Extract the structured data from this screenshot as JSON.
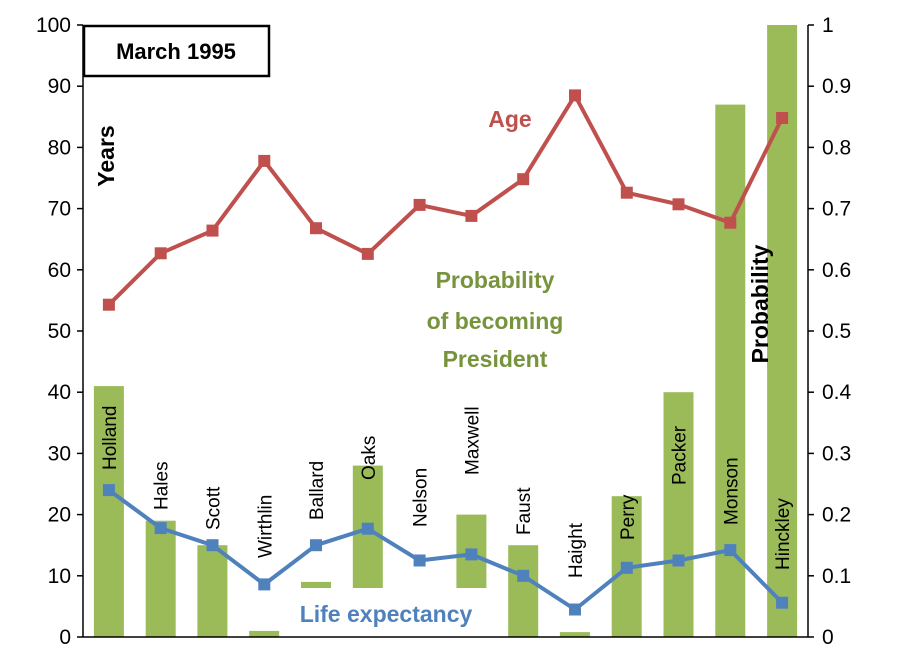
{
  "chart_data": {
    "type": "bar",
    "date_box": "March 1995",
    "categories": [
      "Holland",
      "Hales",
      "Scott",
      "Wirthlin",
      "Ballard",
      "Oaks",
      "Nelson",
      "Maxwell",
      "Faust",
      "Haight",
      "Perry",
      "Packer",
      "Monson",
      "Hinckley"
    ],
    "series": [
      {
        "name": "Probability of becoming President",
        "type": "bar",
        "axis": "right",
        "color": "#9bbb59",
        "values": [
          0.41,
          0.19,
          0.15,
          0.01,
          0.09,
          0.28,
          0.075,
          0.2,
          0.15,
          0.008,
          0.23,
          0.4,
          0.87,
          1.0
        ],
        "base": [
          0,
          0,
          0,
          0,
          0.08,
          0.08,
          0.08,
          0.08,
          0,
          0,
          0,
          0,
          0,
          0
        ]
      },
      {
        "name": "Age",
        "type": "line",
        "axis": "left",
        "color": "#c0504d",
        "values": [
          54.3,
          62.7,
          66.4,
          77.8,
          66.8,
          62.6,
          70.6,
          68.8,
          74.8,
          88.5,
          72.6,
          70.7,
          67.7,
          84.8
        ]
      },
      {
        "name": "Life expectancy",
        "type": "line",
        "axis": "left",
        "color": "#4f81bd",
        "values": [
          24.0,
          17.8,
          15.0,
          8.6,
          15.0,
          17.7,
          12.5,
          13.5,
          10.0,
          4.5,
          11.3,
          12.5,
          14.2,
          5.6
        ]
      }
    ],
    "annotations": {
      "age": "Age",
      "prob_line1": "Probability",
      "prob_line2": "of becoming",
      "prob_line3": "President",
      "life": "Life expectancy"
    },
    "ylabel": "Years",
    "y2label": "Probability",
    "ylim": [
      0,
      100
    ],
    "y2lim": [
      0,
      1
    ],
    "yticks": [
      "0",
      "10",
      "20",
      "30",
      "40",
      "50",
      "60",
      "70",
      "80",
      "90",
      "100"
    ],
    "y2ticks": [
      "0",
      "0.1",
      "0.2",
      "0.3",
      "0.4",
      "0.5",
      "0.6",
      "0.7",
      "0.8",
      "0.9",
      "1"
    ],
    "grid": false,
    "legend": "none"
  }
}
